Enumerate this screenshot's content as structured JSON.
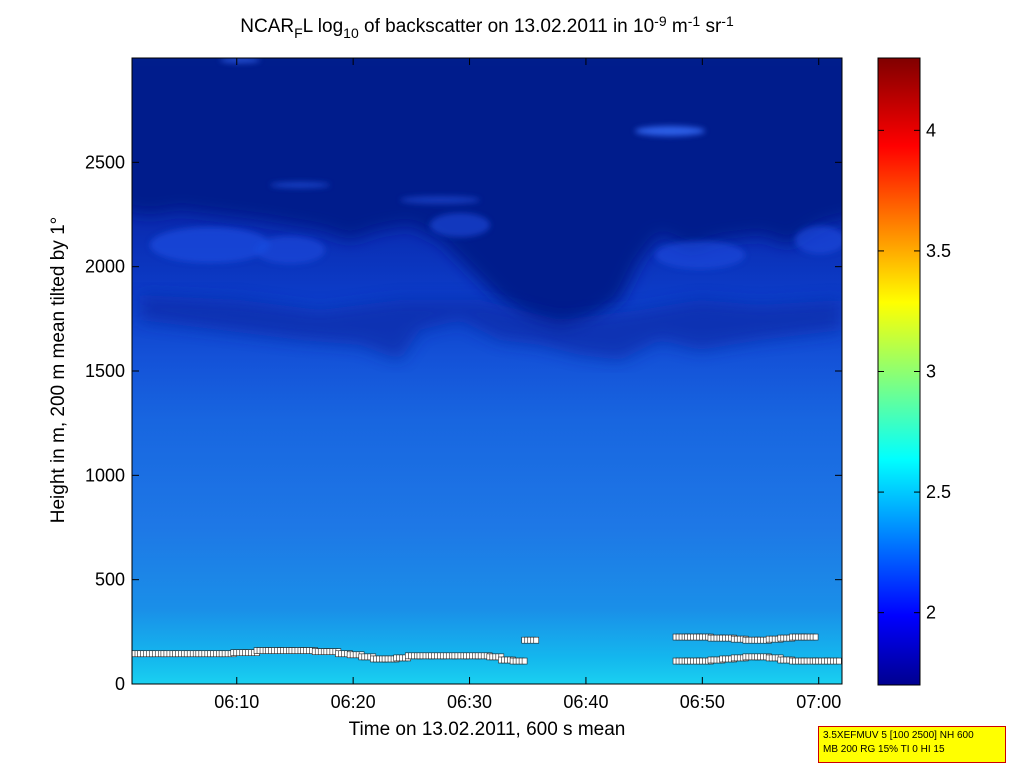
{
  "chart_data": {
    "type": "heatmap",
    "title_parts": {
      "pre": "NCAR",
      "sub1": "F",
      "mid1": "L log",
      "sub2": "10",
      "mid2": " of backscatter on 13.02.2011 in 10",
      "sup1": "-9",
      "mid3": " m",
      "sup2": "-1",
      "mid4": " sr",
      "sup3": "-1"
    },
    "xlabel": "Time on 13.02.2011, 600 s mean",
    "ylabel": "Height in m, 200 m mean tilted by 1°",
    "x_ticks": [
      "06:10",
      "06:20",
      "06:30",
      "06:40",
      "06:50",
      "07:00"
    ],
    "x_tick_minutes": [
      370,
      380,
      390,
      400,
      410,
      420
    ],
    "xlim_minutes": [
      361,
      422
    ],
    "y_ticks": [
      0,
      500,
      1000,
      1500,
      2000,
      2500
    ],
    "ylim": [
      0,
      3000
    ],
    "colorbar": {
      "ticks": [
        "2",
        "2.5",
        "3",
        "3.5",
        "4"
      ],
      "tick_values": [
        2,
        2.5,
        3,
        3.5,
        4
      ],
      "range": [
        1.7,
        4.3
      ],
      "colormap": "jet"
    },
    "field_description_points": [
      {
        "height": 0,
        "value": 2.6
      },
      {
        "height": 200,
        "value": 2.45
      },
      {
        "height": 500,
        "value": 2.25
      },
      {
        "height": 1000,
        "value": 2.15
      },
      {
        "height": 1500,
        "value": 2.08
      },
      {
        "height": 1800,
        "value": 1.95
      },
      {
        "height": 2100,
        "value": 1.85
      },
      {
        "height": 2500,
        "value": 1.72
      },
      {
        "height": 3000,
        "value": 1.7
      }
    ],
    "cloud_base_series": [
      {
        "minute": 361,
        "height": 145
      },
      {
        "minute": 362,
        "height": 145
      },
      {
        "minute": 363,
        "height": 145
      },
      {
        "minute": 364,
        "height": 145
      },
      {
        "minute": 365,
        "height": 145
      },
      {
        "minute": 366,
        "height": 145
      },
      {
        "minute": 367,
        "height": 145
      },
      {
        "minute": 368,
        "height": 145
      },
      {
        "minute": 369,
        "height": 145
      },
      {
        "minute": 370,
        "height": 150
      },
      {
        "minute": 371,
        "height": 150
      },
      {
        "minute": 372,
        "height": 160
      },
      {
        "minute": 373,
        "height": 160
      },
      {
        "minute": 374,
        "height": 160
      },
      {
        "minute": 375,
        "height": 160
      },
      {
        "minute": 376,
        "height": 160
      },
      {
        "minute": 377,
        "height": 155
      },
      {
        "minute": 378,
        "height": 155
      },
      {
        "minute": 379,
        "height": 145
      },
      {
        "minute": 380,
        "height": 140
      },
      {
        "minute": 381,
        "height": 130
      },
      {
        "minute": 382,
        "height": 120
      },
      {
        "minute": 383,
        "height": 120
      },
      {
        "minute": 384,
        "height": 125
      },
      {
        "minute": 385,
        "height": 135
      },
      {
        "minute": 386,
        "height": 135
      },
      {
        "minute": 387,
        "height": 135
      },
      {
        "minute": 388,
        "height": 135
      },
      {
        "minute": 389,
        "height": 135
      },
      {
        "minute": 390,
        "height": 135
      },
      {
        "minute": 391,
        "height": 135
      },
      {
        "minute": 392,
        "height": 130
      },
      {
        "minute": 393,
        "height": 115
      },
      {
        "minute": 394,
        "height": 110
      },
      {
        "minute": 395,
        "height": 210
      },
      {
        "minute": 408,
        "height": 110
      },
      {
        "minute": 409,
        "height": 110
      },
      {
        "minute": 410,
        "height": 110
      },
      {
        "minute": 411,
        "height": 115
      },
      {
        "minute": 412,
        "height": 120
      },
      {
        "minute": 413,
        "height": 125
      },
      {
        "minute": 414,
        "height": 130
      },
      {
        "minute": 415,
        "height": 130
      },
      {
        "minute": 416,
        "height": 125
      },
      {
        "minute": 417,
        "height": 115
      },
      {
        "minute": 418,
        "height": 110
      },
      {
        "minute": 419,
        "height": 110
      },
      {
        "minute": 420,
        "height": 110
      },
      {
        "minute": 421,
        "height": 110
      }
    ],
    "upper_layer_series": [
      {
        "minute": 408,
        "height": 225
      },
      {
        "minute": 409,
        "height": 225
      },
      {
        "minute": 410,
        "height": 225
      },
      {
        "minute": 411,
        "height": 220
      },
      {
        "minute": 412,
        "height": 220
      },
      {
        "minute": 413,
        "height": 215
      },
      {
        "minute": 414,
        "height": 210
      },
      {
        "minute": 415,
        "height": 210
      },
      {
        "minute": 416,
        "height": 215
      },
      {
        "minute": 417,
        "height": 220
      },
      {
        "minute": 418,
        "height": 225
      },
      {
        "minute": 419,
        "height": 225
      }
    ]
  },
  "info_box": {
    "line1": "3.5XEFMUV 5 [100 2500] NH 600",
    "line2": "MB 200 RG 15% TI 0 HI 15"
  }
}
